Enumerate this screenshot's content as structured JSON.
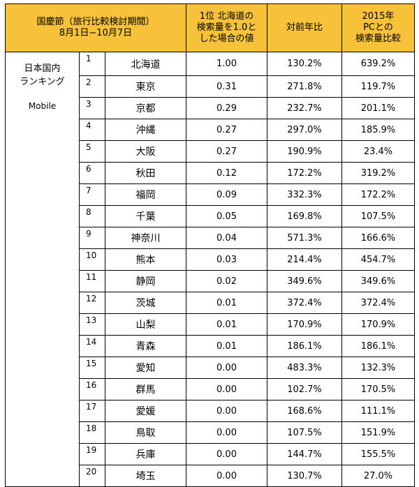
{
  "header": {
    "col1": [
      "国慶節（旅行比較検討期間）",
      "8月1日−10月7日"
    ],
    "col2": [
      "1位 北海道の",
      "検索量を1.0と",
      "した場合の値"
    ],
    "col3": [
      "対前年比"
    ],
    "col4": [
      "2015年",
      "PCとの",
      "検索量比較"
    ]
  },
  "sidebar": {
    "line1": "日本国内",
    "line2": "ランキング",
    "device": "Mobile"
  },
  "rows": [
    {
      "rank": "1",
      "pref": "北海道",
      "value": "1.00",
      "yoy": "130.2%",
      "pc": "639.2%"
    },
    {
      "rank": "2",
      "pref": "東京",
      "value": "0.31",
      "yoy": "271.8%",
      "pc": "119.7%"
    },
    {
      "rank": "3",
      "pref": "京都",
      "value": "0.29",
      "yoy": "232.7%",
      "pc": "201.1%"
    },
    {
      "rank": "4",
      "pref": "沖縄",
      "value": "0.27",
      "yoy": "297.0%",
      "pc": "185.9%"
    },
    {
      "rank": "5",
      "pref": "大阪",
      "value": "0.27",
      "yoy": "190.9%",
      "pc": "23.4%"
    },
    {
      "rank": "6",
      "pref": "秋田",
      "value": "0.12",
      "yoy": "172.2%",
      "pc": "319.2%"
    },
    {
      "rank": "7",
      "pref": "福岡",
      "value": "0.09",
      "yoy": "332.3%",
      "pc": "172.2%"
    },
    {
      "rank": "8",
      "pref": "千葉",
      "value": "0.05",
      "yoy": "169.8%",
      "pc": "107.5%"
    },
    {
      "rank": "9",
      "pref": "神奈川",
      "value": "0.04",
      "yoy": "571.3%",
      "pc": "166.6%"
    },
    {
      "rank": "10",
      "pref": "熊本",
      "value": "0.03",
      "yoy": "214.4%",
      "pc": "454.7%"
    },
    {
      "rank": "11",
      "pref": "静岡",
      "value": "0.02",
      "yoy": "349.6%",
      "pc": "349.6%"
    },
    {
      "rank": "12",
      "pref": "茨城",
      "value": "0.01",
      "yoy": "372.4%",
      "pc": "372.4%"
    },
    {
      "rank": "13",
      "pref": "山梨",
      "value": "0.01",
      "yoy": "170.9%",
      "pc": "170.9%"
    },
    {
      "rank": "14",
      "pref": "青森",
      "value": "0.01",
      "yoy": "186.1%",
      "pc": "186.1%"
    },
    {
      "rank": "15",
      "pref": "愛知",
      "value": "0.00",
      "yoy": "483.3%",
      "pc": "132.3%"
    },
    {
      "rank": "16",
      "pref": "群馬",
      "value": "0.00",
      "yoy": "102.7%",
      "pc": "170.5%"
    },
    {
      "rank": "17",
      "pref": "愛媛",
      "value": "0.00",
      "yoy": "168.6%",
      "pc": "111.1%"
    },
    {
      "rank": "18",
      "pref": "鳥取",
      "value": "0.00",
      "yoy": "107.5%",
      "pc": "151.9%"
    },
    {
      "rank": "19",
      "pref": "兵庫",
      "value": "0.00",
      "yoy": "144.7%",
      "pc": "155.5%"
    },
    {
      "rank": "20",
      "pref": "埼玉",
      "value": "0.00",
      "yoy": "130.7%",
      "pc": "27.0%"
    }
  ],
  "colors": {
    "header_bg": "#f7c23a",
    "border": "#000000"
  }
}
